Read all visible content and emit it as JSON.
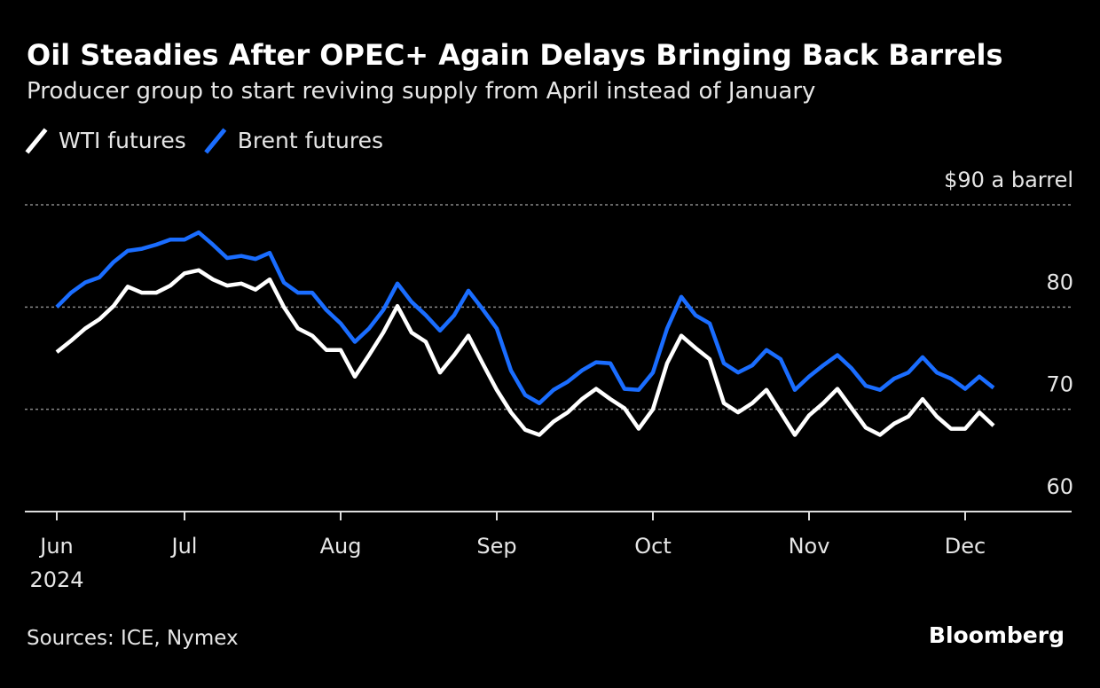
{
  "chart_data": {
    "type": "line",
    "title": "Oil Steadies After OPEC+ Again Delays Bringing Back Barrels",
    "subtitle": "Producer group to start reviving supply from April instead of January",
    "source": "Sources: ICE, Nymex",
    "brand": "Bloomberg",
    "year_label": "2024",
    "categories": [
      "Jun",
      null,
      null,
      null,
      null,
      null,
      null,
      null,
      null,
      "Jul",
      null,
      null,
      null,
      null,
      null,
      null,
      null,
      null,
      null,
      null,
      "Aug",
      null,
      null,
      null,
      null,
      null,
      null,
      null,
      null,
      null,
      null,
      "Sep",
      null,
      null,
      null,
      null,
      null,
      null,
      null,
      null,
      null,
      null,
      "Oct",
      null,
      null,
      null,
      null,
      null,
      null,
      null,
      null,
      null,
      null,
      "Nov",
      null,
      null,
      null,
      null,
      null,
      null,
      null,
      null,
      null,
      null,
      "Dec",
      null,
      null
    ],
    "series": [
      {
        "name": "WTI futures",
        "color": "#ffffff",
        "values": [
          75.6,
          76.7,
          77.9,
          78.8,
          80.1,
          82.0,
          81.4,
          81.4,
          82.1,
          83.3,
          83.6,
          82.7,
          82.1,
          82.3,
          81.7,
          82.7,
          80.0,
          77.9,
          77.2,
          75.8,
          75.8,
          73.2,
          75.3,
          77.5,
          80.1,
          77.5,
          76.6,
          73.6,
          75.3,
          77.2,
          74.5,
          71.9,
          69.7,
          68.0,
          67.5,
          68.8,
          69.7,
          71.0,
          72.0,
          71.0,
          70.1,
          68.1,
          70.0,
          74.5,
          77.2,
          76.0,
          74.9,
          70.6,
          69.7,
          70.6,
          71.9,
          69.7,
          67.5,
          69.4,
          70.6,
          72.0,
          70.1,
          68.2,
          67.5,
          68.6,
          69.3,
          71.0,
          69.3,
          68.1,
          68.1,
          69.7,
          68.4
        ]
      },
      {
        "name": "Brent futures",
        "color": "#1a6dff",
        "values": [
          80.0,
          81.4,
          82.4,
          82.9,
          84.4,
          85.5,
          85.7,
          86.1,
          86.6,
          86.6,
          87.3,
          86.1,
          84.8,
          85.0,
          84.7,
          85.3,
          82.4,
          81.4,
          81.4,
          79.7,
          78.4,
          76.6,
          77.9,
          79.7,
          82.3,
          80.5,
          79.2,
          77.7,
          79.2,
          81.6,
          79.8,
          77.9,
          73.8,
          71.4,
          70.6,
          71.9,
          72.7,
          73.8,
          74.6,
          74.5,
          72.0,
          71.9,
          73.6,
          77.9,
          81.0,
          79.2,
          78.4,
          74.5,
          73.6,
          74.3,
          75.8,
          74.9,
          71.9,
          73.2,
          74.3,
          75.3,
          74.0,
          72.3,
          71.9,
          73.0,
          73.6,
          75.1,
          73.6,
          73.0,
          72.0,
          73.2,
          72.1
        ]
      }
    ],
    "ylim": [
      60,
      90
    ],
    "yticks": [
      60,
      70,
      80,
      {
        "value": 90,
        "label": "$90 a barrel"
      }
    ],
    "grid": true
  }
}
